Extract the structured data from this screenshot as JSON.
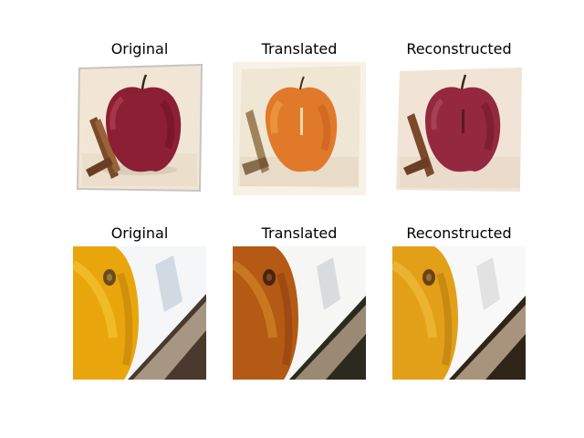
{
  "figure": {
    "rows": [
      {
        "subject": "apple",
        "panels": [
          {
            "title": "Original"
          },
          {
            "title": "Translated"
          },
          {
            "title": "Reconstructed"
          }
        ]
      },
      {
        "subject": "orange",
        "panels": [
          {
            "title": "Original"
          },
          {
            "title": "Translated"
          },
          {
            "title": "Reconstructed"
          }
        ]
      }
    ]
  }
}
